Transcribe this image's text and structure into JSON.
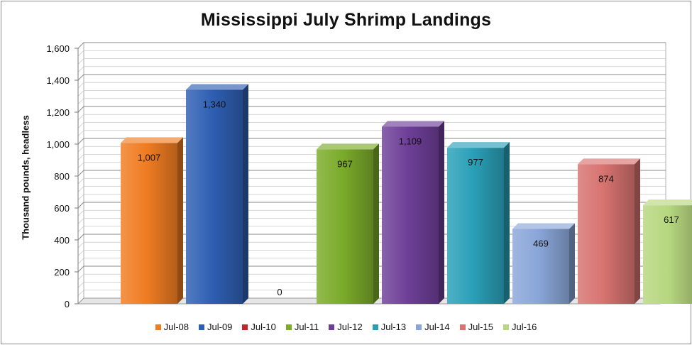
{
  "chart_data": {
    "type": "bar",
    "title": "Mississippi July Shrimp Landings",
    "xlabel": "",
    "ylabel": "Thousand pounds, headless",
    "ylim": [
      0,
      1600
    ],
    "yticks": [
      0,
      200,
      400,
      600,
      800,
      1000,
      1200,
      1400,
      1600
    ],
    "ytick_labels": [
      "0",
      "200",
      "400",
      "600",
      "800",
      "1,000",
      "1,200",
      "1,400",
      "1,600"
    ],
    "grid": true,
    "legend_position": "bottom",
    "series": [
      {
        "name": "Jul-08",
        "value": 1007,
        "label": "1,007",
        "color": "#f07c22"
      },
      {
        "name": "Jul-09",
        "value": 1340,
        "label": "1,340",
        "color": "#2f5fb3"
      },
      {
        "name": "Jul-10",
        "value": 0,
        "label": "0",
        "color": "#c0282d"
      },
      {
        "name": "Jul-11",
        "value": 967,
        "label": "967",
        "color": "#7bab2a"
      },
      {
        "name": "Jul-12",
        "value": 1109,
        "label": "1,109",
        "color": "#6e3f98"
      },
      {
        "name": "Jul-13",
        "value": 977,
        "label": "977",
        "color": "#2aa0b8"
      },
      {
        "name": "Jul-14",
        "value": 469,
        "label": "469",
        "color": "#8aa6d9"
      },
      {
        "name": "Jul-15",
        "value": 874,
        "label": "874",
        "color": "#d77370"
      },
      {
        "name": "Jul-16",
        "value": 617,
        "label": "617",
        "color": "#b6d77f"
      }
    ]
  }
}
